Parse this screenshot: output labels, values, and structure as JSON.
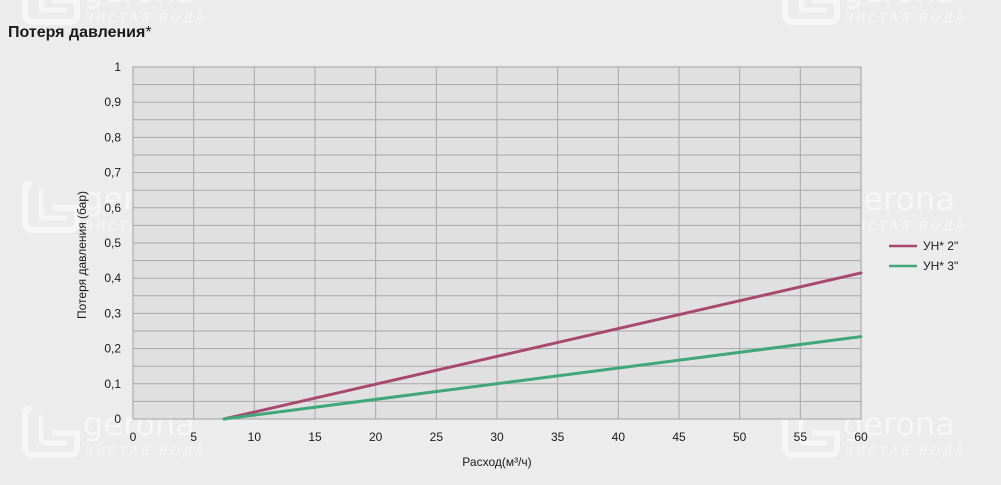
{
  "page": {
    "title": "Потеря давления",
    "title_suffix": "*"
  },
  "watermark": {
    "brand": "gerona",
    "tagline": "ЧИСТАЯ ВОДА"
  },
  "chart_data": {
    "type": "line",
    "xlabel": "Расход(м³/ч)",
    "ylabel": "Потеря давления (бар)",
    "xlim": [
      0,
      60
    ],
    "ylim": [
      0,
      1
    ],
    "x_ticks": [
      "0",
      "5",
      "10",
      "15",
      "20",
      "25",
      "30",
      "35",
      "40",
      "45",
      "50",
      "55",
      "60"
    ],
    "y_ticks": [
      "0",
      "0,1",
      "0,2",
      "0,3",
      "0,4",
      "0,5",
      "0,6",
      "0,7",
      "0,8",
      "0,9",
      "1"
    ],
    "grid": true,
    "legend_position": "right",
    "series": [
      {
        "name": "УН* 2\"",
        "color": "#a8486f",
        "points": [
          [
            7.5,
            0
          ],
          [
            60,
            0.415
          ]
        ]
      },
      {
        "name": "УН* 3\"",
        "color": "#3fa77a",
        "points": [
          [
            7.5,
            0
          ],
          [
            60,
            0.234
          ]
        ]
      }
    ]
  }
}
